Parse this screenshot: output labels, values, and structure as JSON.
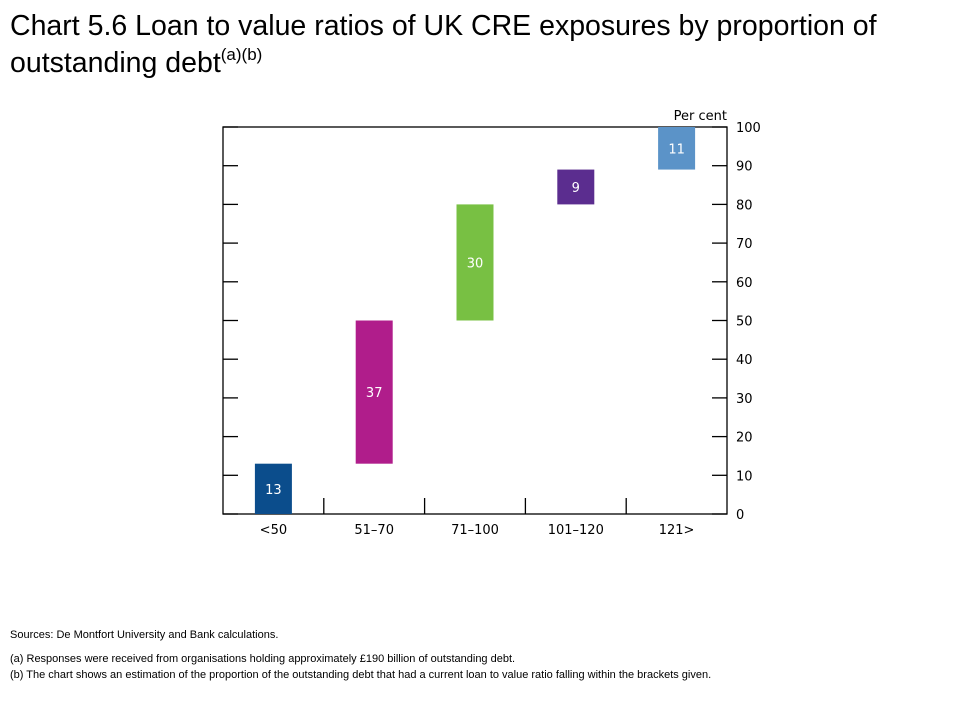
{
  "title": {
    "main": "Chart 5.6  Loan to value ratios of UK CRE exposures by proportion of outstanding debt",
    "superscript": "(a)(b)"
  },
  "notes": {
    "sources": "Sources: De Montfort University and Bank calculations.",
    "note_a": "(a) Responses were received from organisations holding approximately £190 billion of outstanding debt.",
    "note_b": "(b) The chart shows an estimation of the proportion of the outstanding debt that had a current loan to value ratio falling within the brackets given."
  },
  "chart_data": {
    "type": "bar",
    "subtype": "waterfall",
    "categories": [
      "<50",
      "51–70",
      "71–100",
      "101–120",
      "121>"
    ],
    "values": [
      13,
      37,
      30,
      9,
      11
    ],
    "colors": [
      "#0b4d8c",
      "#b01d8b",
      "#78c043",
      "#5b2d8f",
      "#5b93c8"
    ],
    "yunit": "Per cent",
    "ylim": [
      0,
      100
    ],
    "yticks": [
      0,
      10,
      20,
      30,
      40,
      50,
      60,
      70,
      80,
      90,
      100
    ],
    "yaxis_side": "right",
    "grid": false,
    "legend": "none"
  }
}
